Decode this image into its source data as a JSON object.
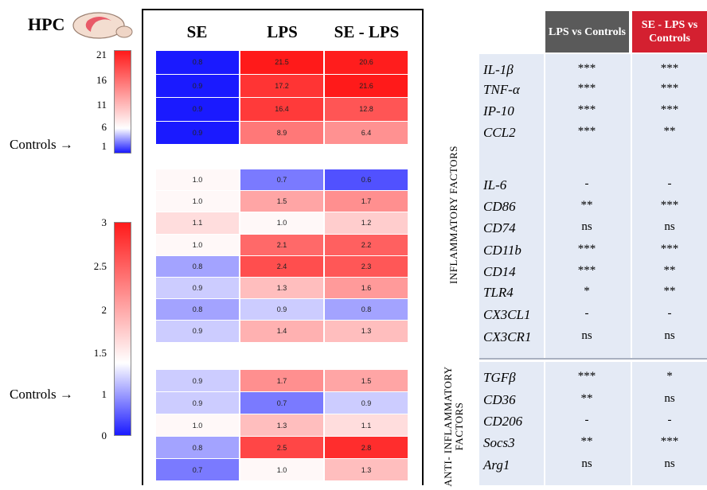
{
  "title": "HPC",
  "scale_top": {
    "ticks": [
      "21",
      "16",
      "11",
      "6",
      "1"
    ]
  },
  "scale_bottom": {
    "ticks": [
      "3",
      "2.5",
      "2",
      "1.5",
      "1",
      "0"
    ]
  },
  "controls_label": "Controls",
  "arrow": "→",
  "colors": {
    "low": "#1a1aff",
    "mid": "#ffffff",
    "high": "#ff1a1a",
    "hdr_gray": "#5a5a5a",
    "hdr_red": "#d42030",
    "table_bg": "#e4eaf5"
  },
  "chart_data": {
    "type": "heatmap",
    "columns": [
      "SE",
      "LPS",
      "SE - LPS"
    ],
    "groups": [
      {
        "name": "",
        "rows": [
          {
            "gene": "IL-1β",
            "values": [
              0.8,
              21.5,
              20.6
            ]
          },
          {
            "gene": "TNF-α",
            "values": [
              0.9,
              17.2,
              21.6
            ]
          },
          {
            "gene": "IP-10",
            "values": [
              0.9,
              16.4,
              12.8
            ]
          },
          {
            "gene": "CCL2",
            "values": [
              0.9,
              8.9,
              6.4
            ]
          }
        ],
        "scale": [
          0,
          21
        ]
      },
      {
        "name": "",
        "rows": [
          {
            "gene": "IL-6",
            "values": [
              1.0,
              0.7,
              0.6
            ]
          },
          {
            "gene": "CD86",
            "values": [
              1.0,
              1.5,
              1.7
            ]
          },
          {
            "gene": "CD74",
            "values": [
              1.1,
              1.0,
              1.2
            ]
          },
          {
            "gene": "CD11b",
            "values": [
              1.0,
              2.1,
              2.2
            ]
          },
          {
            "gene": "CD14",
            "values": [
              0.8,
              2.4,
              2.3
            ]
          },
          {
            "gene": "TLR4",
            "values": [
              0.9,
              1.3,
              1.6
            ]
          },
          {
            "gene": "CX3CL1",
            "values": [
              0.8,
              0.9,
              0.8
            ]
          },
          {
            "gene": "CX3CR1",
            "values": [
              0.9,
              1.4,
              1.3
            ]
          }
        ],
        "scale": [
          0,
          3
        ]
      },
      {
        "name": "",
        "rows": [
          {
            "gene": "TGFβ",
            "values": [
              0.9,
              1.7,
              1.5
            ]
          },
          {
            "gene": "CD36",
            "values": [
              0.9,
              0.7,
              0.9
            ]
          },
          {
            "gene": "CD206",
            "values": [
              1.0,
              1.3,
              1.1
            ]
          },
          {
            "gene": "Socs3",
            "values": [
              0.8,
              2.5,
              2.8
            ]
          },
          {
            "gene": "Arg1",
            "values": [
              0.7,
              1.0,
              1.3
            ]
          }
        ],
        "scale": [
          0,
          3
        ]
      }
    ]
  },
  "table": {
    "headers": [
      "LPS vs Controls",
      "SE - LPS vs Controls"
    ],
    "side_labels": [
      "INFLAMMATORY  FACTORS",
      "ANTI- INFLAMMATORY FACTORS"
    ],
    "rows": [
      {
        "gene": "IL-1β",
        "lps": "***",
        "selps": "***"
      },
      {
        "gene": "TNF-α",
        "lps": "***",
        "selps": "***"
      },
      {
        "gene": "IP-10",
        "lps": "***",
        "selps": "***"
      },
      {
        "gene": "CCL2",
        "lps": "***",
        "selps": "**"
      },
      {
        "gene": "IL-6",
        "lps": "-",
        "selps": "-"
      },
      {
        "gene": "CD86",
        "lps": "**",
        "selps": "***"
      },
      {
        "gene": "CD74",
        "lps": "ns",
        "selps": "ns"
      },
      {
        "gene": "CD11b",
        "lps": "***",
        "selps": "***"
      },
      {
        "gene": "CD14",
        "lps": "***",
        "selps": "**"
      },
      {
        "gene": "TLR4",
        "lps": "*",
        "selps": "**"
      },
      {
        "gene": "CX3CL1",
        "lps": "-",
        "selps": "-"
      },
      {
        "gene": "CX3CR1",
        "lps": "ns",
        "selps": "ns"
      },
      {
        "gene": "TGFβ",
        "lps": "***",
        "selps": "*"
      },
      {
        "gene": "CD36",
        "lps": "**",
        "selps": "ns"
      },
      {
        "gene": "CD206",
        "lps": "-",
        "selps": "-"
      },
      {
        "gene": "Socs3",
        "lps": "**",
        "selps": "***"
      },
      {
        "gene": "Arg1",
        "lps": "ns",
        "selps": "ns"
      }
    ]
  }
}
